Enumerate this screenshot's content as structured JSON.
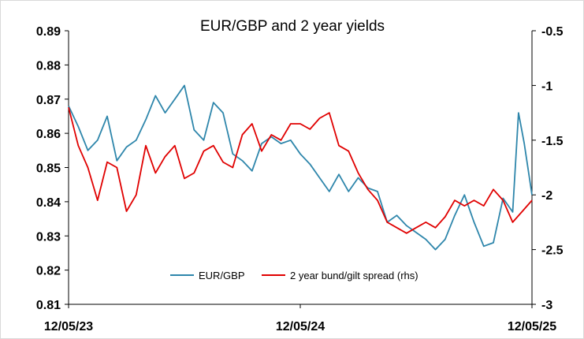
{
  "chart_data": {
    "type": "line",
    "title": "EUR/GBP and 2 year yields",
    "xlabel": "",
    "ylabel": "",
    "x_tick_labels": [
      "12/05/23",
      "12/05/24",
      "12/05/25"
    ],
    "y_left": {
      "lim": [
        0.81,
        0.89
      ],
      "ticks": [
        "0.89",
        "0.88",
        "0.87",
        "0.86",
        "0.85",
        "0.84",
        "0.83",
        "0.82",
        "0.81"
      ]
    },
    "y_right": {
      "lim": [
        -3,
        -0.5
      ],
      "ticks": [
        "-0.5",
        "-1",
        "-1.5",
        "-2",
        "-2.5",
        "-3"
      ]
    },
    "grid": false,
    "legend_position": "bottom-center",
    "colors": {
      "eurgbp": "#2e86ab",
      "spread": "#e00000"
    },
    "x_range_months": [
      0,
      24
    ],
    "series": [
      {
        "name": "EUR/GBP",
        "axis": "left",
        "color": "#2e86ab",
        "x": [
          0,
          0.5,
          1,
          1.5,
          2,
          2.5,
          3,
          3.5,
          4,
          4.5,
          5,
          5.5,
          6,
          6.5,
          7,
          7.5,
          8,
          8.5,
          9,
          9.5,
          10,
          10.5,
          11,
          11.5,
          12,
          12.5,
          13,
          13.5,
          14,
          14.5,
          15,
          15.5,
          16,
          16.5,
          17,
          17.5,
          18,
          18.5,
          19,
          19.5,
          20,
          20.5,
          21,
          21.5,
          22,
          22.5,
          23,
          23.3,
          23.6,
          24
        ],
        "values": [
          0.868,
          0.862,
          0.855,
          0.858,
          0.865,
          0.852,
          0.856,
          0.858,
          0.864,
          0.871,
          0.866,
          0.87,
          0.874,
          0.861,
          0.858,
          0.869,
          0.866,
          0.854,
          0.852,
          0.849,
          0.857,
          0.859,
          0.857,
          0.858,
          0.854,
          0.851,
          0.847,
          0.843,
          0.848,
          0.843,
          0.847,
          0.844,
          0.843,
          0.834,
          0.836,
          0.833,
          0.831,
          0.829,
          0.826,
          0.829,
          0.836,
          0.842,
          0.834,
          0.827,
          0.828,
          0.841,
          0.837,
          0.866,
          0.857,
          0.842
        ]
      },
      {
        "name": "2 year bund/gilt spread (rhs)",
        "axis": "right",
        "color": "#e00000",
        "x": [
          0,
          0.5,
          1,
          1.5,
          2,
          2.5,
          3,
          3.5,
          4,
          4.5,
          5,
          5.5,
          6,
          6.5,
          7,
          7.5,
          8,
          8.5,
          9,
          9.5,
          10,
          10.5,
          11,
          11.5,
          12,
          12.5,
          13,
          13.5,
          14,
          14.5,
          15,
          15.5,
          16,
          16.5,
          17,
          17.5,
          18,
          18.5,
          19,
          19.5,
          20,
          20.5,
          21,
          21.5,
          22,
          22.5,
          23,
          23.5,
          24
        ],
        "values": [
          -1.2,
          -1.55,
          -1.75,
          -2.05,
          -1.7,
          -1.75,
          -2.15,
          -2.0,
          -1.55,
          -1.8,
          -1.65,
          -1.55,
          -1.85,
          -1.8,
          -1.6,
          -1.55,
          -1.7,
          -1.75,
          -1.45,
          -1.35,
          -1.6,
          -1.45,
          -1.5,
          -1.35,
          -1.35,
          -1.4,
          -1.3,
          -1.25,
          -1.55,
          -1.6,
          -1.8,
          -1.95,
          -2.05,
          -2.25,
          -2.3,
          -2.35,
          -2.3,
          -2.25,
          -2.3,
          -2.2,
          -2.05,
          -2.1,
          -2.05,
          -2.1,
          -1.95,
          -2.05,
          -2.25,
          -2.15,
          -2.05
        ]
      }
    ]
  }
}
